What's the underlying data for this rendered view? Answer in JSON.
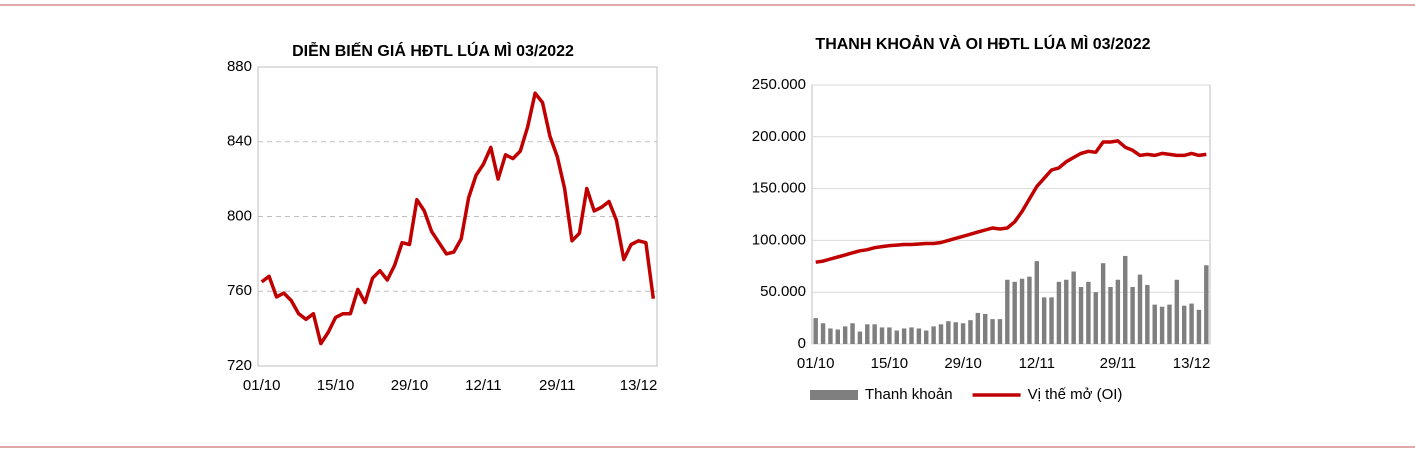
{
  "chart_data": [
    {
      "type": "line",
      "title": "DIỄN BIẾN GIÁ HĐTL LÚA MÌ 03/2022",
      "categories": [
        "01/10",
        null,
        null,
        null,
        null,
        null,
        null,
        null,
        null,
        null,
        "15/10",
        null,
        null,
        null,
        null,
        null,
        null,
        null,
        null,
        null,
        "29/10",
        null,
        null,
        null,
        null,
        null,
        null,
        null,
        null,
        null,
        "12/11",
        null,
        null,
        null,
        null,
        null,
        null,
        null,
        null,
        null,
        "29/11",
        null,
        null,
        null,
        null,
        null,
        null,
        null,
        null,
        null,
        null,
        "13/12",
        null,
        null
      ],
      "values": [
        765,
        768,
        757,
        759,
        755,
        748,
        745,
        748,
        732,
        738,
        746,
        748,
        748,
        761,
        754,
        767,
        771,
        766,
        774,
        786,
        785,
        809,
        803,
        792,
        786,
        780,
        781,
        788,
        810,
        822,
        828,
        837,
        820,
        833,
        831,
        835,
        848,
        866,
        861,
        843,
        832,
        815,
        787,
        791,
        815,
        803,
        805,
        808,
        798,
        777,
        785,
        787,
        786,
        756
      ],
      "color": "#c00000",
      "ylim": [
        720,
        880
      ],
      "yticks": [
        720,
        760,
        800,
        840,
        880
      ],
      "grid": true
    },
    {
      "type": "combo",
      "title": "THANH KHOẢN VÀ OI HĐTL LÚA MÌ 03/2022",
      "categories": [
        "01/10",
        null,
        null,
        null,
        null,
        null,
        null,
        null,
        null,
        null,
        "15/10",
        null,
        null,
        null,
        null,
        null,
        null,
        null,
        null,
        null,
        "29/10",
        null,
        null,
        null,
        null,
        null,
        null,
        null,
        null,
        null,
        "12/11",
        null,
        null,
        null,
        null,
        null,
        null,
        null,
        null,
        null,
        null,
        "29/11",
        null,
        null,
        null,
        null,
        null,
        null,
        null,
        null,
        null,
        "13/12",
        null,
        null
      ],
      "series": [
        {
          "name": "Thanh khoản",
          "type": "bar",
          "color": "#7f7f7f",
          "values": [
            25000,
            20000,
            15000,
            14000,
            17000,
            20000,
            12000,
            19000,
            19000,
            16000,
            16000,
            13000,
            15000,
            16000,
            15000,
            13000,
            17000,
            19000,
            22000,
            21000,
            20000,
            23000,
            30000,
            29000,
            24000,
            24000,
            62000,
            60000,
            63000,
            65000,
            80000,
            45000,
            45000,
            60000,
            62000,
            70000,
            55000,
            60000,
            50000,
            78000,
            55000,
            62000,
            85000,
            55000,
            67000,
            57000,
            38000,
            36000,
            38000,
            62000,
            37000,
            39000,
            33000,
            76000
          ]
        },
        {
          "name": "Vị thế mở (OI)",
          "type": "line",
          "color": "#c00000",
          "values": [
            79000,
            80000,
            82000,
            84000,
            86000,
            88000,
            90000,
            91000,
            93000,
            94000,
            95000,
            95500,
            96000,
            96000,
            96500,
            97000,
            97000,
            98000,
            100000,
            102000,
            104000,
            106000,
            108000,
            110000,
            112000,
            111000,
            112000,
            118000,
            128000,
            140000,
            152000,
            160000,
            168000,
            170000,
            176000,
            180000,
            184000,
            186000,
            185000,
            195000,
            195000,
            196000,
            190000,
            187000,
            182000,
            183000,
            182000,
            184000,
            183000,
            182000,
            182000,
            184000,
            182000,
            183000
          ]
        }
      ],
      "ylim": [
        0,
        250000
      ],
      "yticks": [
        0,
        {
          "value": 50000,
          "label": "50.000"
        },
        {
          "value": 100000,
          "label": "100.000"
        },
        {
          "value": 150000,
          "label": "150.000"
        },
        {
          "value": 200000,
          "label": "200.000"
        },
        {
          "value": 250000,
          "label": "250.000"
        }
      ],
      "grid": true,
      "legend": "bottom"
    }
  ]
}
